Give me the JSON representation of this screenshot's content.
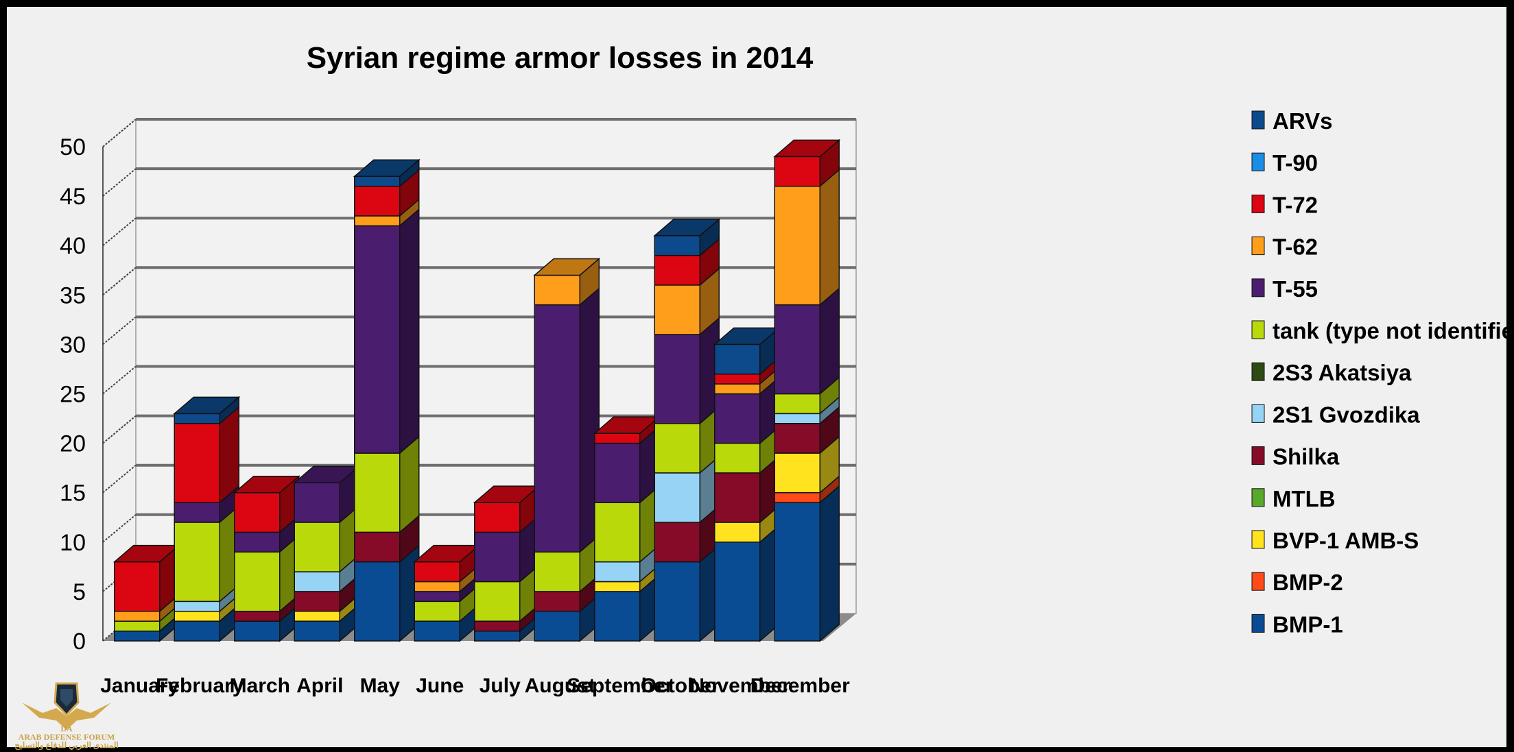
{
  "chart_data": {
    "type": "bar",
    "stacked": true,
    "title": "Syrian regime armor losses in 2014",
    "categories": [
      "January",
      "February",
      "March",
      "April",
      "May",
      "June",
      "July",
      "August",
      "September",
      "October",
      "November",
      "December"
    ],
    "ylim": [
      0,
      50
    ],
    "yticks": [
      0,
      5,
      10,
      15,
      20,
      25,
      30,
      35,
      40,
      45,
      50
    ],
    "grid": true,
    "legend_position": "right",
    "series": [
      {
        "name": "BMP-1",
        "color": "#0a4c94",
        "values": [
          1,
          2,
          2,
          2,
          8,
          2,
          1,
          3,
          5,
          8,
          10,
          14
        ]
      },
      {
        "name": "BMP-2",
        "color": "#ff4a1a",
        "values": [
          0,
          0,
          0,
          0,
          0,
          0,
          0,
          0,
          0,
          0,
          0,
          1
        ]
      },
      {
        "name": "BVP-1 AMB-S",
        "color": "#ffe31e",
        "values": [
          0,
          1,
          0,
          1,
          0,
          0,
          0,
          0,
          1,
          0,
          2,
          4
        ]
      },
      {
        "name": "MTLB",
        "color": "#58a82a",
        "values": [
          0,
          0,
          0,
          0,
          0,
          0,
          0,
          0,
          0,
          0,
          0,
          0
        ]
      },
      {
        "name": "Shilka",
        "color": "#860b28",
        "values": [
          0,
          0,
          1,
          2,
          3,
          0,
          1,
          2,
          0,
          4,
          5,
          3
        ]
      },
      {
        "name": "2S1 Gvozdika",
        "color": "#96d3f5",
        "values": [
          0,
          1,
          0,
          2,
          0,
          0,
          0,
          0,
          2,
          5,
          0,
          1
        ]
      },
      {
        "name": "2S3 Akatsiya",
        "color": "#2c4a12",
        "values": [
          0,
          0,
          0,
          0,
          0,
          0,
          0,
          0,
          0,
          0,
          0,
          0
        ]
      },
      {
        "name": "tank (type not identified)",
        "color": "#b9d90b",
        "values": [
          1,
          8,
          6,
          5,
          8,
          2,
          4,
          4,
          6,
          5,
          3,
          2
        ]
      },
      {
        "name": "T-55",
        "color": "#4b1d6f",
        "values": [
          0,
          2,
          2,
          4,
          23,
          1,
          5,
          25,
          6,
          9,
          5,
          9
        ]
      },
      {
        "name": "T-62",
        "color": "#ff9e1b",
        "values": [
          1,
          0,
          0,
          0,
          1,
          1,
          0,
          3,
          0,
          5,
          1,
          12
        ]
      },
      {
        "name": "T-72",
        "color": "#dc0612",
        "values": [
          5,
          8,
          4,
          0,
          3,
          2,
          3,
          0,
          1,
          3,
          1,
          3
        ]
      },
      {
        "name": "T-90",
        "color": "#1a8ee4",
        "values": [
          0,
          0,
          0,
          0,
          0,
          0,
          0,
          0,
          0,
          0,
          0,
          0
        ]
      },
      {
        "name": "ARVs",
        "color": "#0d4a8c",
        "values": [
          0,
          1,
          0,
          0,
          1,
          0,
          0,
          0,
          0,
          2,
          3,
          0
        ]
      }
    ]
  },
  "logo": {
    "icon": "eagle-emblem-icon",
    "initials": "DA",
    "name": "ARAB DEFENSE FORUM",
    "subtitle": "المنتدى العربي للدفاع والتسليح"
  }
}
